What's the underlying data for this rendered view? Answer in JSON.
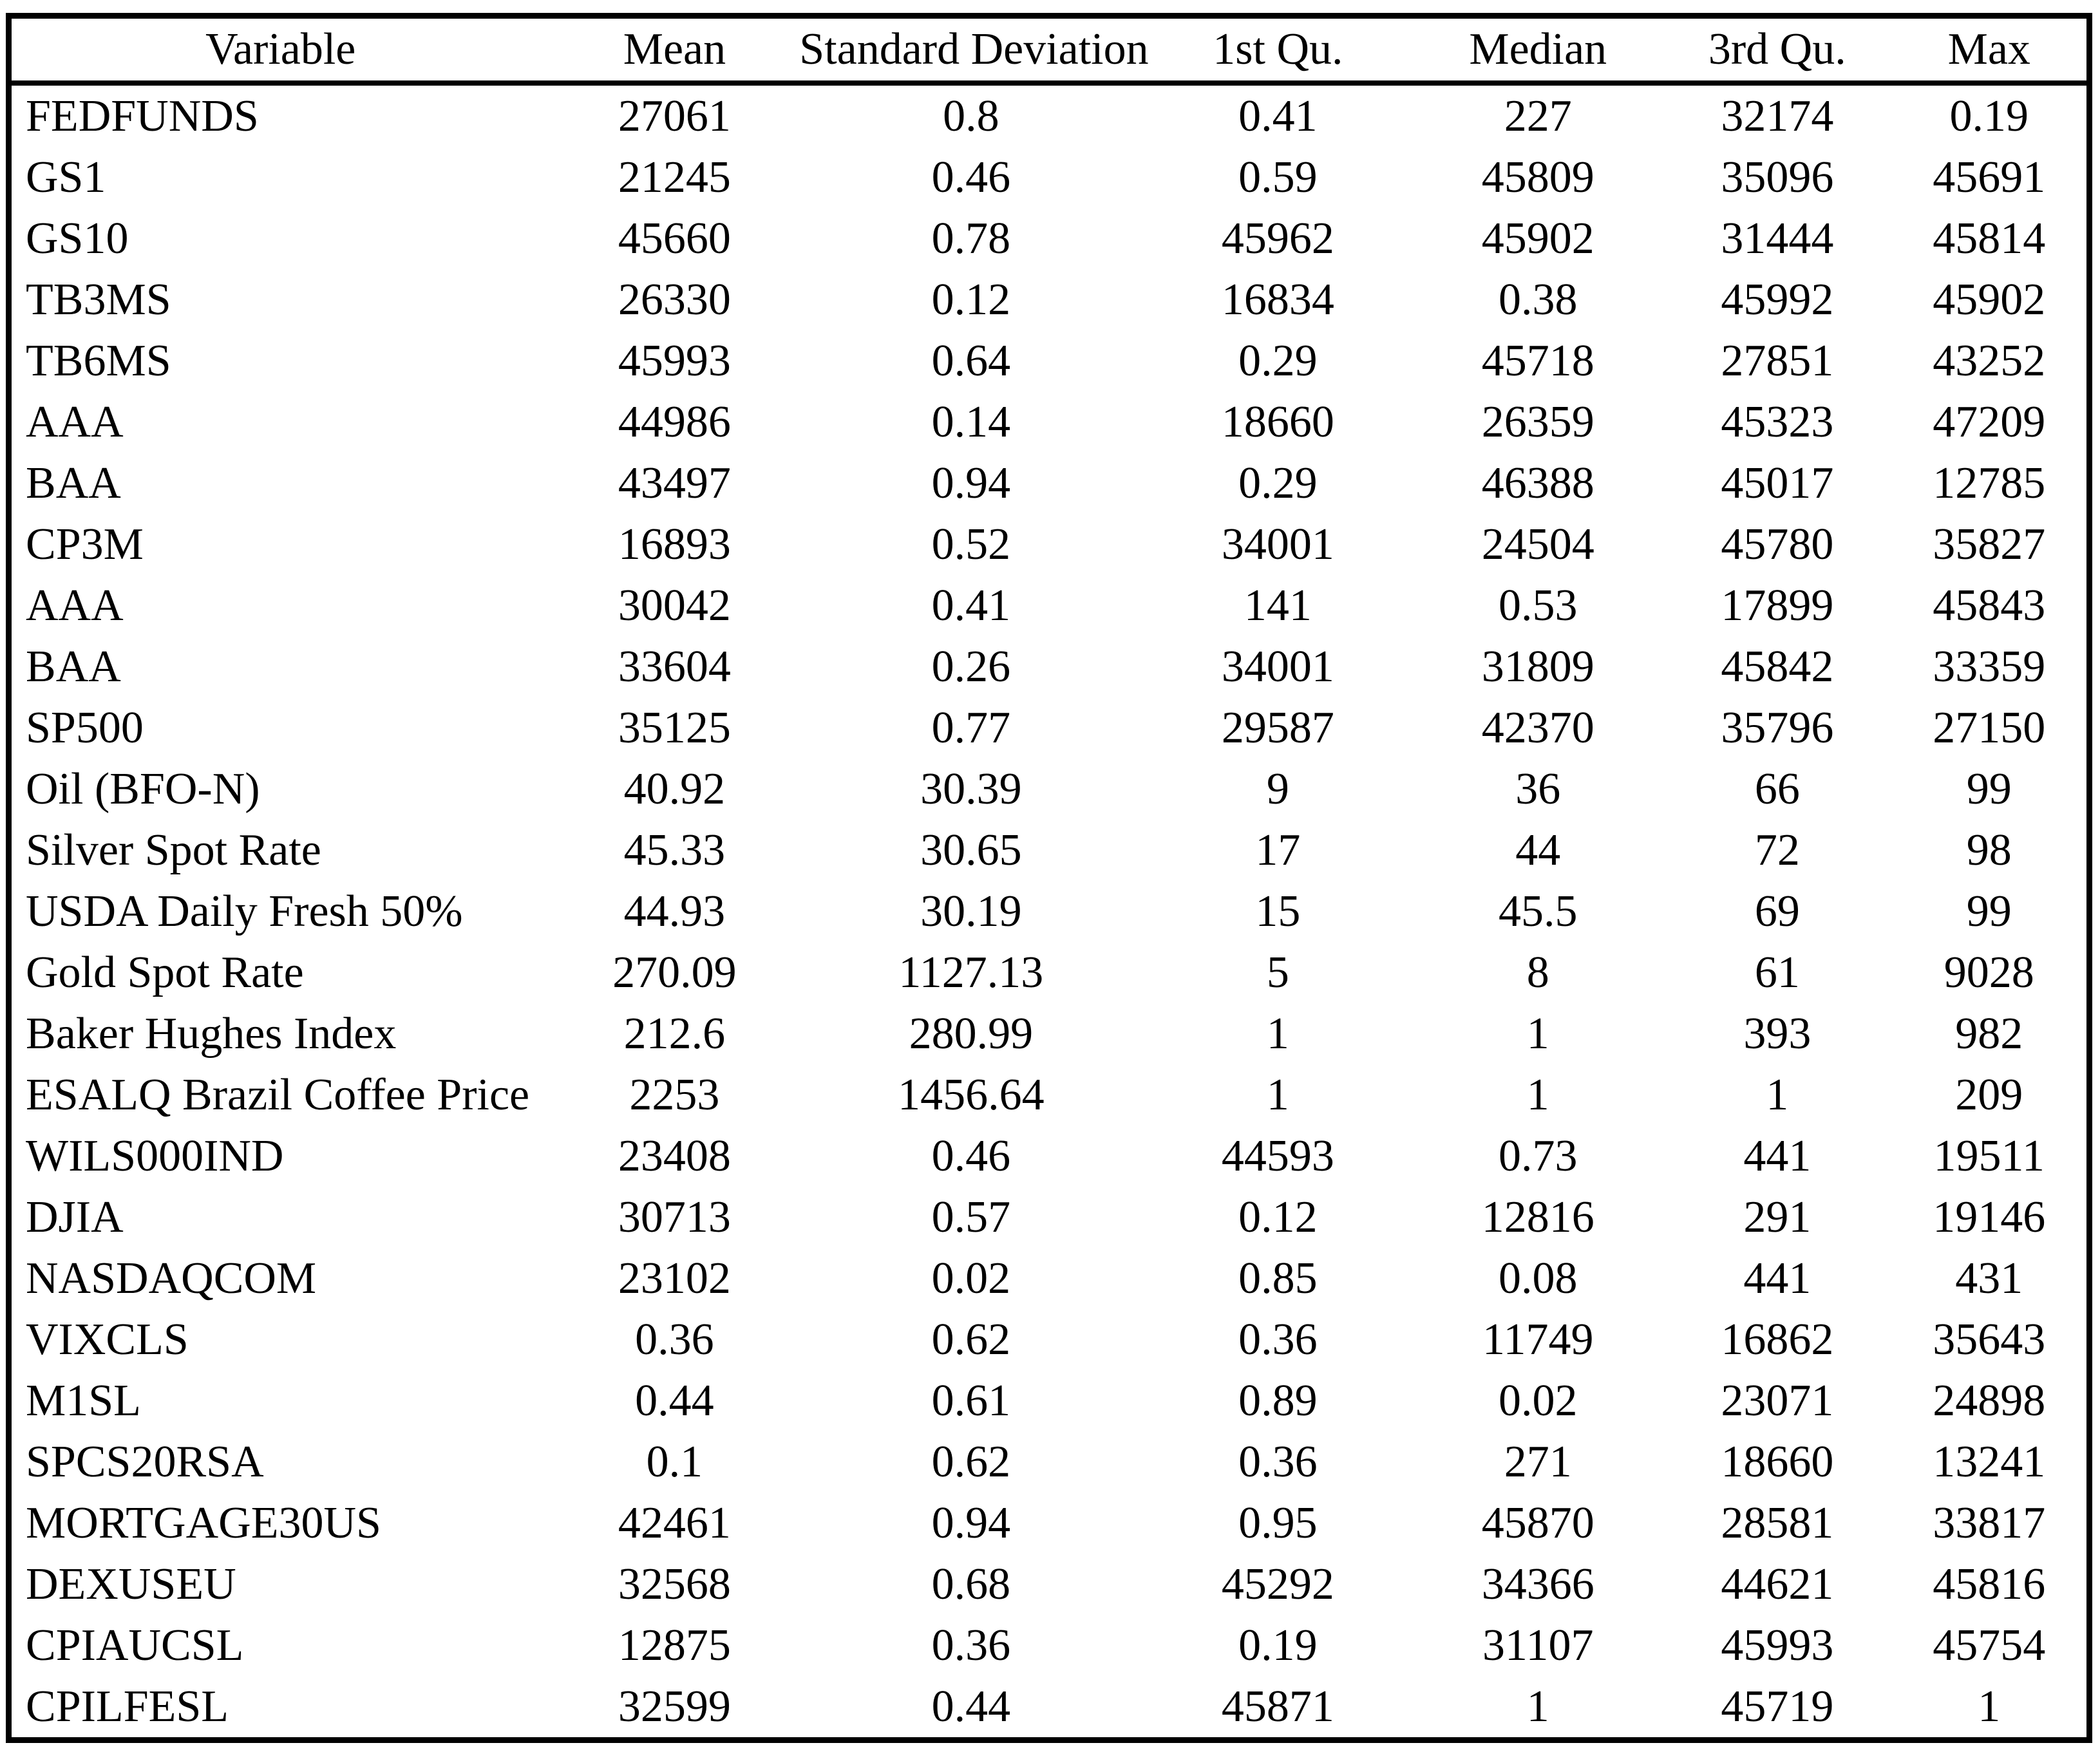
{
  "table": {
    "columns": [
      "Variable",
      "Mean",
      "Standard Deviation",
      "1st Qu.",
      "Median",
      "3rd Qu.",
      "Max"
    ],
    "rows": [
      [
        "FEDFUNDS",
        "27061",
        "0.8",
        "0.41",
        "227",
        "32174",
        "0.19"
      ],
      [
        "GS1",
        "21245",
        "0.46",
        "0.59",
        "45809",
        "35096",
        "45691"
      ],
      [
        "GS10",
        "45660",
        "0.78",
        "45962",
        "45902",
        "31444",
        "45814"
      ],
      [
        "TB3MS",
        "26330",
        "0.12",
        "16834",
        "0.38",
        "45992",
        "45902"
      ],
      [
        "TB6MS",
        "45993",
        "0.64",
        "0.29",
        "45718",
        "27851",
        "43252"
      ],
      [
        "AAA",
        "44986",
        "0.14",
        "18660",
        "26359",
        "45323",
        "47209"
      ],
      [
        "BAA",
        "43497",
        "0.94",
        "0.29",
        "46388",
        "45017",
        "12785"
      ],
      [
        "CP3M",
        "16893",
        "0.52",
        "34001",
        "24504",
        "45780",
        "35827"
      ],
      [
        "AAA",
        "30042",
        "0.41",
        "141",
        "0.53",
        "17899",
        "45843"
      ],
      [
        "BAA",
        "33604",
        "0.26",
        "34001",
        "31809",
        "45842",
        "33359"
      ],
      [
        "SP500",
        "35125",
        "0.77",
        "29587",
        "42370",
        "35796",
        "27150"
      ],
      [
        "Oil (BFO-N)",
        "40.92",
        "30.39",
        "9",
        "36",
        "66",
        "99"
      ],
      [
        "Silver Spot Rate",
        "45.33",
        "30.65",
        "17",
        "44",
        "72",
        "98"
      ],
      [
        "USDA Daily Fresh 50%",
        "44.93",
        "30.19",
        "15",
        "45.5",
        "69",
        "99"
      ],
      [
        "Gold Spot Rate",
        "270.09",
        "1127.13",
        "5",
        "8",
        "61",
        "9028"
      ],
      [
        "Baker Hughes Index",
        "212.6",
        "280.99",
        "1",
        "1",
        "393",
        "982"
      ],
      [
        "ESALQ Brazil Coffee Price",
        "2253",
        "1456.64",
        "1",
        "1",
        "1",
        "209"
      ],
      [
        "WILS000IND",
        "23408",
        "0.46",
        "44593",
        "0.73",
        "441",
        "19511"
      ],
      [
        "DJIA",
        "30713",
        "0.57",
        "0.12",
        "12816",
        "291",
        "19146"
      ],
      [
        "NASDAQCOM",
        "23102",
        "0.02",
        "0.85",
        "0.08",
        "441",
        "431"
      ],
      [
        "VIXCLS",
        "0.36",
        "0.62",
        "0.36",
        "11749",
        "16862",
        "35643"
      ],
      [
        "M1SL",
        "0.44",
        "0.61",
        "0.89",
        "0.02",
        "23071",
        "24898"
      ],
      [
        "SPCS20RSA",
        "0.1",
        "0.62",
        "0.36",
        "271",
        "18660",
        "13241"
      ],
      [
        "MORTGAGE30US",
        "42461",
        "0.94",
        "0.95",
        "45870",
        "28581",
        "33817"
      ],
      [
        "DEXUSEU",
        "32568",
        "0.68",
        "45292",
        "34366",
        "44621",
        "45816"
      ],
      [
        "CPIAUCSL",
        "12875",
        "0.36",
        "0.19",
        "31107",
        "45993",
        "45754"
      ],
      [
        "CPILFESL",
        "32599",
        "0.44",
        "45871",
        "1",
        "45719",
        "1"
      ]
    ],
    "col_widths": [
      "26%",
      "12%",
      "16.5%",
      "13%",
      "12%",
      "11%",
      "9.5%"
    ]
  }
}
